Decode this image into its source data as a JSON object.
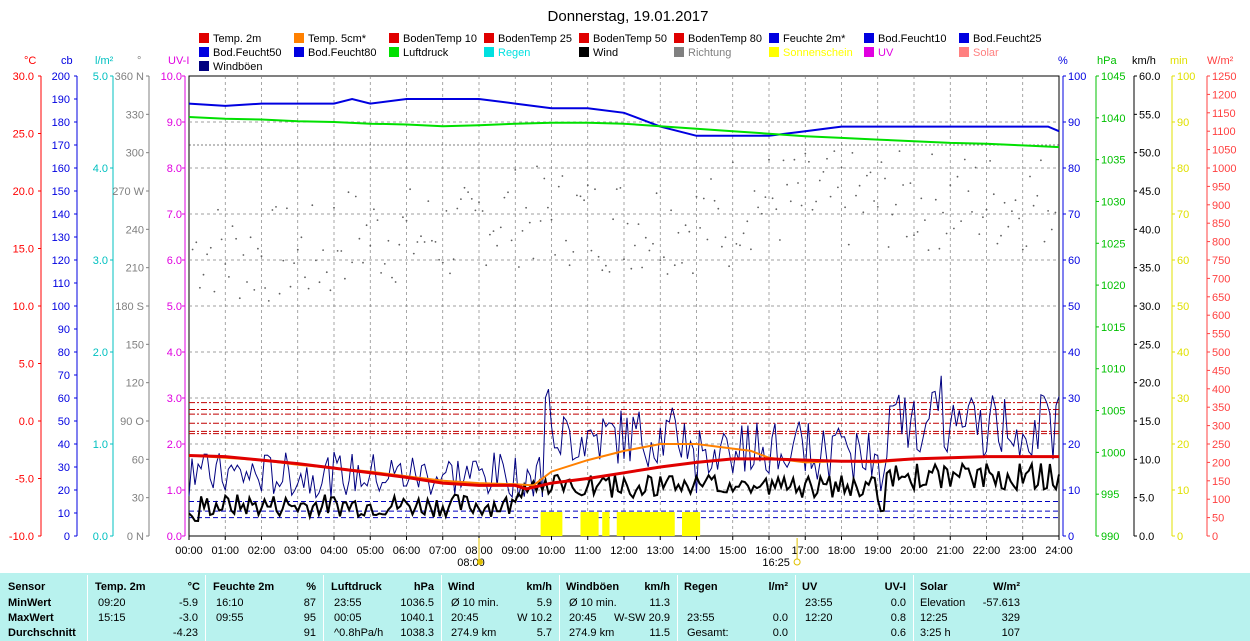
{
  "chart_data": {
    "type": "line",
    "title": "Donnerstag, 19.01.2017",
    "x_ticks": [
      "00:00",
      "01:00",
      "02:00",
      "03:00",
      "04:00",
      "05:00",
      "06:00",
      "07:00",
      "08:00",
      "09:00",
      "10:00",
      "11:00",
      "12:00",
      "13:00",
      "14:00",
      "15:00",
      "16:00",
      "17:00",
      "18:00",
      "19:00",
      "20:00",
      "21:00",
      "22:00",
      "23:00",
      "24:00"
    ],
    "sunrise": "08:00",
    "sunset": "16:25",
    "legend": [
      {
        "name": "Temp. 2m",
        "color": "#e00000"
      },
      {
        "name": "Temp. 5cm*",
        "color": "#ff8000"
      },
      {
        "name": "BodenTemp 10",
        "color": "#e00000"
      },
      {
        "name": "BodenTemp 25",
        "color": "#e00000"
      },
      {
        "name": "BodenTemp 50",
        "color": "#e00000"
      },
      {
        "name": "BodenTemp 80",
        "color": "#e00000"
      },
      {
        "name": "Feuchte 2m*",
        "color": "#0000e0"
      },
      {
        "name": "Bod.Feucht10",
        "color": "#0000e0"
      },
      {
        "name": "Bod.Feucht25",
        "color": "#0000e0"
      },
      {
        "name": "Bod.Feucht50",
        "color": "#0000e0"
      },
      {
        "name": "Bod.Feucht80",
        "color": "#0000e0"
      },
      {
        "name": "Luftdruck",
        "color": "#00e000"
      },
      {
        "name": "Regen",
        "color": "#00e0e0"
      },
      {
        "name": "Wind",
        "color": "#000000"
      },
      {
        "name": "Richtung",
        "color": "#808080"
      },
      {
        "name": "Sonnenschein",
        "color": "#ffff00"
      },
      {
        "name": "UV",
        "color": "#e000e0"
      },
      {
        "name": "Solar",
        "color": "#ff8080"
      },
      {
        "name": "Windböen",
        "color": "#000080"
      }
    ],
    "axes": [
      {
        "unit": "°C",
        "color": "#ff0000",
        "ticks": [
          "30.0",
          "25.0",
          "20.0",
          "15.0",
          "10.0",
          "5.0",
          "0.0",
          "-5.0",
          "-10.0"
        ],
        "range": [
          -10,
          30
        ]
      },
      {
        "unit": "cb",
        "color": "#0000e0",
        "ticks": [
          "200",
          "190",
          "180",
          "170",
          "160",
          "150",
          "140",
          "130",
          "120",
          "110",
          "100",
          "90",
          "80",
          "70",
          "60",
          "50",
          "40",
          "30",
          "20",
          "10",
          "0"
        ],
        "range": [
          0,
          200
        ]
      },
      {
        "unit": "l/m²",
        "color": "#00c0c0",
        "ticks": [
          "5.0",
          "4.0",
          "3.0",
          "2.0",
          "1.0",
          "0.0"
        ],
        "range": [
          0,
          5
        ]
      },
      {
        "unit": "°",
        "color": "#808080",
        "ticks": [
          "360 N",
          "330",
          "300",
          "270 W",
          "240",
          "210",
          "180 S",
          "150",
          "120",
          "90  O",
          "60",
          "30",
          "0  N"
        ],
        "range": [
          0,
          360
        ]
      },
      {
        "unit": "UV-I",
        "color": "#e000e0",
        "ticks": [
          "10.0",
          "9.0",
          "8.0",
          "7.0",
          "6.0",
          "5.0",
          "4.0",
          "3.0",
          "2.0",
          "1.0",
          "0.0"
        ],
        "range": [
          0,
          10
        ]
      },
      {
        "unit": "%",
        "color": "#0000e0",
        "ticks": [
          "100",
          "90",
          "80",
          "70",
          "60",
          "50",
          "40",
          "30",
          "20",
          "10",
          "0"
        ],
        "range": [
          0,
          100
        ]
      },
      {
        "unit": "hPa",
        "color": "#00c000",
        "ticks": [
          "1045",
          "1040",
          "1035",
          "1030",
          "1025",
          "1020",
          "1015",
          "1010",
          "1005",
          "1000",
          "995",
          "990"
        ],
        "range": [
          990,
          1045
        ]
      },
      {
        "unit": "km/h",
        "color": "#000000",
        "ticks": [
          "60.0",
          "55.0",
          "50.0",
          "45.0",
          "40.0",
          "35.0",
          "30.0",
          "25.0",
          "20.0",
          "15.0",
          "10.0",
          "5.0",
          "0.0"
        ],
        "range": [
          0,
          60
        ]
      },
      {
        "unit": "min",
        "color": "#e0e000",
        "ticks": [
          "100",
          "90",
          "80",
          "70",
          "60",
          "50",
          "40",
          "30",
          "20",
          "10",
          "0"
        ],
        "range": [
          0,
          100
        ]
      },
      {
        "unit": "W/m²",
        "color": "#ff4040",
        "ticks": [
          "1250",
          "1200",
          "1150",
          "1100",
          "1050",
          "1000",
          "950",
          "900",
          "850",
          "800",
          "750",
          "700",
          "650",
          "600",
          "550",
          "500",
          "450",
          "400",
          "350",
          "300",
          "250",
          "200",
          "150",
          "100",
          "50",
          "0"
        ],
        "range": [
          0,
          1250
        ]
      }
    ],
    "series": [
      {
        "name": "Feuchte 2m*",
        "axis": "%",
        "color": "#0000e0",
        "x": [
          0,
          1,
          2,
          3,
          4,
          4.5,
          5,
          6,
          7,
          8,
          9,
          10,
          11,
          12,
          13,
          14,
          15,
          16,
          17,
          18,
          19,
          20,
          21,
          22,
          23,
          23.7,
          24
        ],
        "values": [
          94,
          93.5,
          94,
          94,
          94,
          95,
          94,
          95,
          95,
          95,
          94,
          93,
          93,
          92,
          89,
          87,
          87,
          87,
          88,
          89,
          89,
          89,
          89,
          89,
          89,
          89,
          88
        ]
      },
      {
        "name": "Luftdruck",
        "axis": "hPa",
        "color": "#00e000",
        "x": [
          0,
          1,
          2,
          3,
          4,
          5,
          6,
          7,
          8,
          9,
          10,
          11,
          12,
          13,
          14,
          15,
          16,
          17,
          18,
          19,
          20,
          21,
          22,
          23,
          24
        ],
        "values": [
          1040.1,
          1039.9,
          1039.8,
          1039.6,
          1039.5,
          1039.3,
          1039.2,
          1039.0,
          1039.1,
          1039.3,
          1039.4,
          1039.4,
          1039.3,
          1039.0,
          1038.7,
          1038.4,
          1038.1,
          1037.8,
          1037.6,
          1037.4,
          1037.2,
          1037.0,
          1036.9,
          1036.7,
          1036.5
        ]
      },
      {
        "name": "Temp. 2m",
        "axis": "°C",
        "color": "#e00000",
        "x": [
          0,
          1,
          2,
          3,
          4,
          5,
          6,
          7,
          8,
          9,
          9.3,
          10,
          11,
          12,
          13,
          14,
          15,
          16,
          17,
          18,
          19,
          20,
          21,
          22,
          23,
          24
        ],
        "values": [
          -3.0,
          -3.1,
          -3.4,
          -3.7,
          -4.1,
          -4.5,
          -4.9,
          -5.4,
          -5.6,
          -5.6,
          -5.9,
          -5.4,
          -5.0,
          -4.5,
          -4.0,
          -3.6,
          -3.3,
          -3.3,
          -3.4,
          -3.5,
          -3.5,
          -3.3,
          -3.2,
          -3.1,
          -3.1,
          -3.1
        ]
      },
      {
        "name": "Temp. 5cm*",
        "axis": "°C",
        "color": "#ff8000",
        "x": [
          0,
          1,
          2,
          3,
          4,
          5,
          6,
          7,
          8,
          9,
          9.5,
          10,
          11,
          12,
          13,
          14,
          15,
          15.5,
          16,
          17,
          18,
          19,
          20,
          21,
          22,
          23,
          24
        ],
        "values": [
          -3.0,
          -3.2,
          -3.4,
          -3.8,
          -4.1,
          -4.4,
          -4.8,
          -5.2,
          -5.4,
          -5.5,
          -5.6,
          -4.4,
          -3.4,
          -2.6,
          -2.0,
          -2.0,
          -2.4,
          -2.6,
          -3.2,
          -3.6,
          -3.5,
          -3.6,
          -3.3,
          -3.2,
          -3.1,
          -3.1,
          -3.1
        ]
      },
      {
        "name": "Wind",
        "axis": "km/h",
        "color": "#000000",
        "mean": "5.7"
      },
      {
        "name": "Windböen",
        "axis": "km/h",
        "color": "#000080",
        "mean": "11.5"
      },
      {
        "name": "Richtung",
        "axis": "°",
        "color": "#808080"
      },
      {
        "name": "Sonnenschein",
        "axis": "min",
        "color": "#ffff00",
        "blocks": [
          [
            9.7,
            10.3
          ],
          [
            10.8,
            11.3
          ],
          [
            11.4,
            11.6
          ],
          [
            11.8,
            13.4
          ],
          [
            13.6,
            14.1
          ]
        ]
      }
    ],
    "soil_temp_levels_c": [
      -1.1,
      -0.9,
      -0.2,
      0.6,
      1.0,
      1.6
    ],
    "gridlines": true
  },
  "summary": {
    "headers": {
      "sensor": "Sensor",
      "temp": "Temp. 2m",
      "temp_unit": "°C",
      "hum": "Feuchte 2m",
      "hum_unit": "%",
      "press": "Luftdruck",
      "press_unit": "hPa",
      "wind": "Wind",
      "wind_unit": "km/h",
      "gust": "Windböen",
      "gust_unit": "km/h",
      "rain": "Regen",
      "rain_unit": "l/m²",
      "uv": "UV",
      "uv_unit": "UV-I",
      "solar": "Solar",
      "solar_unit": "W/m²"
    },
    "rows": [
      {
        "label": "MinWert",
        "temp_t": "09:20",
        "temp_v": "-5.9",
        "hum_t": "16:10",
        "hum_v": "87",
        "press_t": "23:55",
        "press_v": "1036.5",
        "wind_t": "Ø 10 min.",
        "wind_v": "5.9",
        "gust_t": "Ø 10 min.",
        "gust_v": "11.3",
        "rain_t": "",
        "rain_v": "",
        "uv_t": "23:55",
        "uv_v": "0.0",
        "solar_t": "Elevation",
        "solar_v": "-57.613"
      },
      {
        "label": "MaxWert",
        "temp_t": "15:15",
        "temp_v": "-3.0",
        "hum_t": "09:55",
        "hum_v": "95",
        "press_t": "00:05",
        "press_v": "1040.1",
        "wind_t": "20:45",
        "wind_v": "W 10.2",
        "gust_t": "20:45",
        "gust_v": "W-SW 20.9",
        "rain_t": "23:55",
        "rain_v": "0.0",
        "uv_t": "12:20",
        "uv_v": "0.8",
        "solar_t": "12:25",
        "solar_v": "329"
      },
      {
        "label": "Durchschnitt",
        "temp_t": "",
        "temp_v": "-4.23",
        "hum_t": "",
        "hum_v": "91",
        "press_t": "^0.8hPa/h",
        "press_v": "1038.3",
        "wind_t": "274.9 km",
        "wind_v": "5.7",
        "gust_t": "274.9 km",
        "gust_v": "11.5",
        "rain_t": "Gesamt:",
        "rain_v": "0.0",
        "uv_t": "",
        "uv_v": "0.6",
        "solar_t": "3:25 h",
        "solar_v": "107"
      }
    ]
  }
}
